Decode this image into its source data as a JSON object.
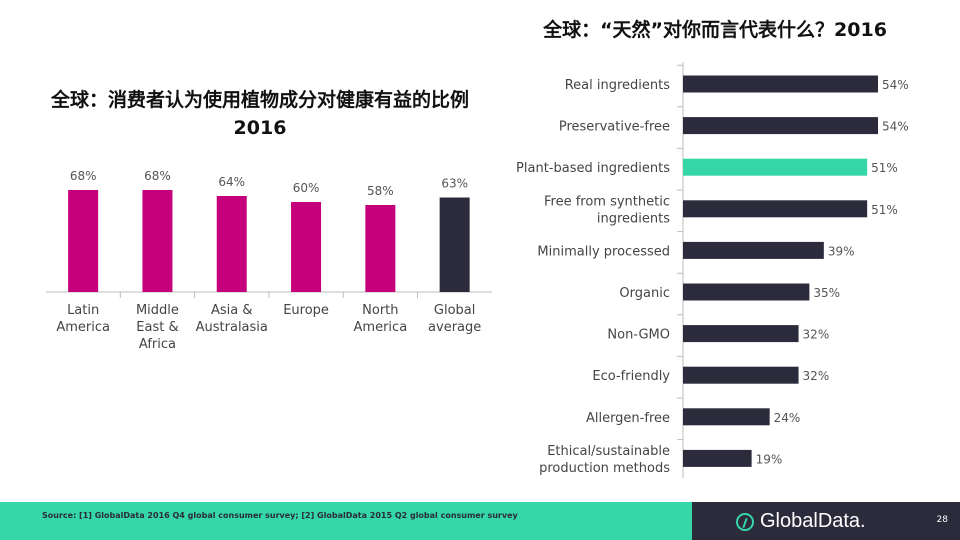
{
  "left_title": "全球：消费者认为使用植物成分对健康有益的比例 2016",
  "right_title": "全球：“天然”对你而言代表什么？2016",
  "footer": {
    "source": "Source: [1] GlobalData 2016 Q4 global consumer survey; [2] GlobalData 2015 Q2 global consumer survey",
    "brand": "GlobalData.",
    "page": "28"
  },
  "colors": {
    "magenta": "#c5007a",
    "navy": "#2b2b3c",
    "green": "#35d6a8"
  },
  "chart_data": [
    {
      "type": "bar",
      "title": "全球：消费者认为使用植物成分对健康有益的比例 2016",
      "categories": [
        [
          "Latin",
          "America"
        ],
        [
          "Middle",
          "East &",
          "Africa"
        ],
        [
          "Asia &",
          "Australasia"
        ],
        [
          "Europe"
        ],
        [
          "North",
          "America"
        ],
        [
          "Global",
          "average"
        ]
      ],
      "values": [
        68,
        68,
        64,
        60,
        58,
        63
      ],
      "labels": [
        "68%",
        "68%",
        "64%",
        "60%",
        "58%",
        "63%"
      ],
      "highlight_index": 5,
      "ylim": [
        0,
        100
      ],
      "unit": "%"
    },
    {
      "type": "bar",
      "orientation": "horizontal",
      "title": "全球：“天然”对你而言代表什么？2016",
      "categories": [
        [
          "Real ingredients"
        ],
        [
          "Preservative-free"
        ],
        [
          "Plant-based ingredients"
        ],
        [
          "Free from synthetic",
          "ingredients"
        ],
        [
          "Minimally processed"
        ],
        [
          "Organic"
        ],
        [
          "Non-GMO"
        ],
        [
          "Eco-friendly"
        ],
        [
          "Allergen-free"
        ],
        [
          "Ethical/sustainable",
          "production methods"
        ]
      ],
      "values": [
        54,
        54,
        51,
        51,
        39,
        35,
        32,
        32,
        24,
        19
      ],
      "labels": [
        "54%",
        "54%",
        "51%",
        "51%",
        "39%",
        "35%",
        "32%",
        "32%",
        "24%",
        "19%"
      ],
      "highlight_index": 2,
      "xlim": [
        0,
        54
      ],
      "unit": "%"
    }
  ]
}
